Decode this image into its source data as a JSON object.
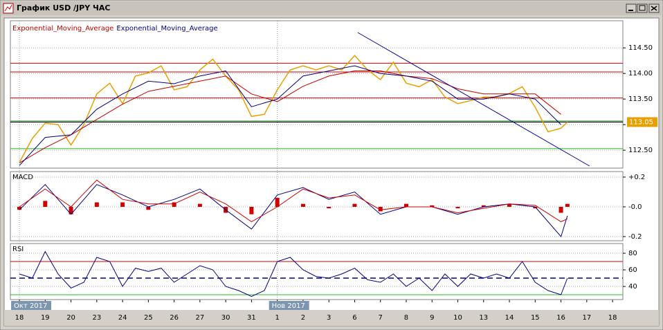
{
  "window": {
    "title": "График USD /JPY ЧАС"
  },
  "x_axis": {
    "xlim": [
      -0.35,
      23.4
    ],
    "xticks": [
      {
        "value": 0,
        "label": "18"
      },
      {
        "value": 1,
        "label": "19"
      },
      {
        "value": 2,
        "label": "20"
      },
      {
        "value": 3,
        "label": "23"
      },
      {
        "value": 4,
        "label": "24"
      },
      {
        "value": 5,
        "label": "25"
      },
      {
        "value": 6,
        "label": "26"
      },
      {
        "value": 7,
        "label": "27"
      },
      {
        "value": 8,
        "label": "30"
      },
      {
        "value": 9,
        "label": "31"
      },
      {
        "value": 10,
        "label": "1"
      },
      {
        "value": 11,
        "label": "2"
      },
      {
        "value": 12,
        "label": "3"
      },
      {
        "value": 13,
        "label": "6"
      },
      {
        "value": 14,
        "label": "7"
      },
      {
        "value": 15,
        "label": "8"
      },
      {
        "value": 16,
        "label": "9"
      },
      {
        "value": 17,
        "label": "10"
      },
      {
        "value": 18,
        "label": "13"
      },
      {
        "value": 19,
        "label": "14"
      },
      {
        "value": 20,
        "label": "15"
      },
      {
        "value": 21,
        "label": "16"
      },
      {
        "value": 22,
        "label": "17"
      },
      {
        "value": 23,
        "label": "18"
      }
    ],
    "periods": [
      {
        "value": 0,
        "label": "Окт 2017"
      },
      {
        "value": 10,
        "label": "Нов 2017"
      }
    ]
  },
  "chart_data": [
    {
      "type": "price",
      "ylim": [
        112.15,
        115.03
      ],
      "yticks": [
        {
          "value": 114.5,
          "label": "114.50"
        },
        {
          "value": 114,
          "label": "114.00"
        },
        {
          "value": 113.5,
          "label": "113.50"
        },
        {
          "value": 113,
          "label": "113.00"
        },
        {
          "value": 112.5,
          "label": "112.50"
        }
      ],
      "price": {
        "color": "#e8a000",
        "x": [
          0,
          0.5,
          1,
          1.5,
          2,
          2.5,
          3,
          3.5,
          4,
          4.5,
          5,
          5.5,
          6,
          6.5,
          7,
          7.5,
          8,
          8.5,
          9,
          9.5,
          10,
          10.5,
          11,
          11.5,
          12,
          12.5,
          13,
          13.5,
          14,
          14.5,
          15,
          15.5,
          16,
          16.5,
          17,
          17.5,
          18,
          18.5,
          19,
          19.5,
          20,
          20.5,
          21,
          21.25
        ],
        "values": [
          112.26,
          112.73,
          113.03,
          113.0,
          112.6,
          113.0,
          113.6,
          113.81,
          113.41,
          113.95,
          114.01,
          114.15,
          113.68,
          113.74,
          114.07,
          114.28,
          113.95,
          113.68,
          113.16,
          113.2,
          113.68,
          114.07,
          114.15,
          114.07,
          114.15,
          114.07,
          114.35,
          114.07,
          113.88,
          114.22,
          113.81,
          113.74,
          113.88,
          113.54,
          113.41,
          113.47,
          113.54,
          113.54,
          113.61,
          113.74,
          113.34,
          112.86,
          112.93,
          113.05
        ]
      },
      "series": [
        {
          "name": "Exponential_Moving_Average",
          "color": "#c00000",
          "x": [
            0,
            1,
            2,
            3,
            4,
            5,
            6,
            7,
            8,
            9,
            10,
            11,
            12,
            13,
            14,
            15,
            16,
            17,
            18,
            19,
            20,
            21
          ],
          "values": [
            112.25,
            112.55,
            112.8,
            113.1,
            113.4,
            113.65,
            113.75,
            113.85,
            113.95,
            113.6,
            113.45,
            113.75,
            113.95,
            114.05,
            114.05,
            113.95,
            113.9,
            113.7,
            113.6,
            113.6,
            113.6,
            113.2
          ]
        },
        {
          "name": "Exponential_Moving_Average",
          "color": "#000080",
          "x": [
            0,
            1,
            2,
            3,
            4,
            5,
            6,
            7,
            8,
            9,
            10,
            11,
            12,
            13,
            14,
            15,
            16,
            17,
            18,
            19,
            20,
            21
          ],
          "values": [
            112.2,
            112.75,
            112.8,
            113.3,
            113.6,
            113.85,
            113.8,
            113.95,
            114.05,
            113.35,
            113.5,
            113.95,
            114.05,
            114.15,
            114.0,
            113.95,
            113.85,
            113.5,
            113.5,
            113.6,
            113.5,
            113.0
          ]
        }
      ],
      "levels": [
        {
          "value": 114.2,
          "color": "#d00000"
        },
        {
          "value": 114.03,
          "color": "#d00000"
        },
        {
          "value": 113.52,
          "color": "#d00000"
        },
        {
          "value": 113.07,
          "color": "#008000"
        },
        {
          "value": 113.05,
          "color": "#000000"
        },
        {
          "value": 112.53,
          "color": "#20b020"
        }
      ],
      "trendline": {
        "color": "#0000a0",
        "x": [
          13.12,
          22.11
        ],
        "values": [
          114.8,
          112.19
        ]
      }
    },
    {
      "type": "macd",
      "title": "MACD",
      "ylim": [
        -0.228,
        0.237
      ],
      "yticks": [
        {
          "value": 0.2,
          "label": "+0.2"
        },
        {
          "value": 0,
          "label": "-0.0"
        },
        {
          "value": -0.2,
          "label": "-0.2"
        }
      ],
      "x": [
        0,
        1,
        2,
        3,
        4,
        5,
        6,
        7,
        8,
        9,
        10,
        11,
        12,
        13,
        14,
        15,
        16,
        17,
        18,
        19,
        20,
        21,
        21.25
      ],
      "histogram": {
        "color": "#d00000",
        "values": [
          -0.02,
          0.04,
          -0.05,
          0.03,
          0.03,
          -0.02,
          0.03,
          0.02,
          -0.04,
          -0.05,
          0.06,
          0.02,
          -0.01,
          0.02,
          -0.03,
          0.02,
          0.01,
          -0.01,
          0.01,
          0.02,
          -0.01,
          -0.04,
          0.02
        ]
      },
      "series": [
        {
          "color": "#000080",
          "values": [
            -0.02,
            0.15,
            -0.05,
            0.15,
            0.08,
            0.0,
            0.05,
            0.12,
            -0.02,
            -0.15,
            0.08,
            0.13,
            0.05,
            0.1,
            -0.05,
            0.0,
            0.0,
            -0.05,
            0.0,
            0.02,
            0.0,
            -0.2,
            -0.06
          ]
        },
        {
          "color": "#d00000",
          "values": [
            0.0,
            0.12,
            0.0,
            0.18,
            0.05,
            0.02,
            0.02,
            0.1,
            0.02,
            -0.1,
            0.0,
            0.12,
            0.06,
            0.08,
            -0.02,
            0.0,
            0.0,
            -0.04,
            -0.01,
            0.02,
            0.01,
            -0.1,
            -0.08
          ]
        }
      ]
    },
    {
      "type": "rsi",
      "title": "RSI",
      "ylim": [
        24.2,
        91.7
      ],
      "yticks": [
        80,
        60,
        40
      ],
      "levels": [
        {
          "value": 70,
          "color": "#d00000"
        },
        {
          "value": 50,
          "color": "#000080"
        },
        {
          "value": 30,
          "color": "#20c020"
        }
      ],
      "series": [
        {
          "color": "#000080",
          "x": [
            0,
            0.5,
            1,
            1.5,
            2,
            2.5,
            3,
            3.5,
            4,
            4.5,
            5,
            5.5,
            6,
            6.5,
            7,
            7.5,
            8,
            8.5,
            9,
            9.5,
            10,
            10.5,
            11,
            11.5,
            12,
            12.5,
            13,
            13.5,
            14,
            14.5,
            15,
            15.5,
            16,
            16.5,
            17,
            17.5,
            18,
            18.5,
            19,
            19.5,
            20,
            20.5,
            21,
            21.25
          ],
          "values": [
            55,
            50,
            82,
            55,
            38,
            45,
            75,
            70,
            40,
            62,
            58,
            62,
            45,
            55,
            65,
            60,
            40,
            35,
            28,
            35,
            70,
            75,
            60,
            52,
            50,
            55,
            62,
            48,
            45,
            55,
            40,
            50,
            35,
            55,
            40,
            55,
            50,
            55,
            50,
            70,
            45,
            35,
            30,
            50
          ]
        }
      ]
    }
  ]
}
